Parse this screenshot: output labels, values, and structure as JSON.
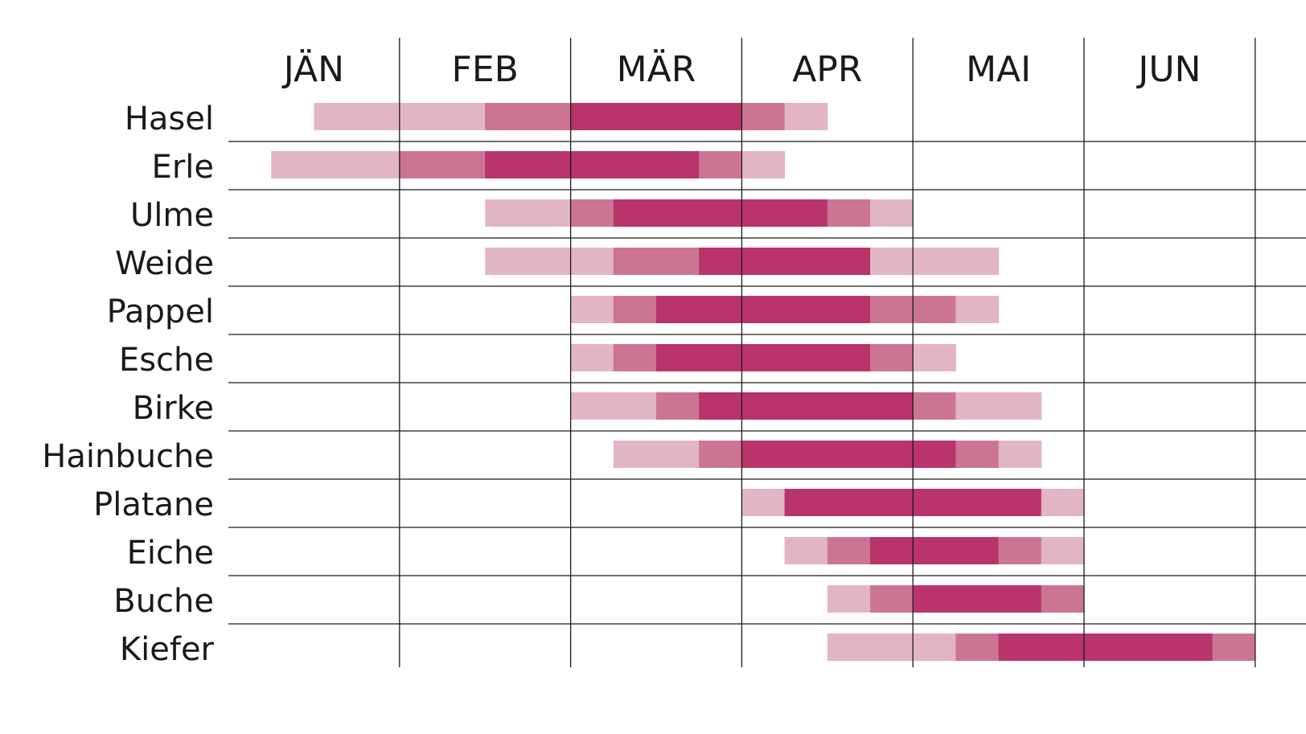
{
  "chart_data": {
    "type": "gantt",
    "months": [
      "JÄN",
      "FEB",
      "MÄR",
      "APR",
      "MAI",
      "JUN"
    ],
    "x_unit": "quarter-month",
    "colors": {
      "level1": "#e2b5c5",
      "level2": "#cc7593",
      "level3": "#b8346b"
    },
    "rows": [
      {
        "name": "Hasel",
        "segments": [
          {
            "start": 2,
            "end": 6,
            "level": 1
          },
          {
            "start": 6,
            "end": 8,
            "level": 2
          },
          {
            "start": 8,
            "end": 12,
            "level": 3
          },
          {
            "start": 12,
            "end": 13,
            "level": 2
          },
          {
            "start": 13,
            "end": 14,
            "level": 1
          }
        ]
      },
      {
        "name": "Erle",
        "segments": [
          {
            "start": 1,
            "end": 4,
            "level": 1
          },
          {
            "start": 4,
            "end": 6,
            "level": 2
          },
          {
            "start": 6,
            "end": 11,
            "level": 3
          },
          {
            "start": 11,
            "end": 12,
            "level": 2
          },
          {
            "start": 12,
            "end": 13,
            "level": 1
          }
        ]
      },
      {
        "name": "Ulme",
        "segments": [
          {
            "start": 6,
            "end": 8,
            "level": 1
          },
          {
            "start": 8,
            "end": 9,
            "level": 2
          },
          {
            "start": 9,
            "end": 14,
            "level": 3
          },
          {
            "start": 14,
            "end": 15,
            "level": 2
          },
          {
            "start": 15,
            "end": 16,
            "level": 1
          }
        ]
      },
      {
        "name": "Weide",
        "segments": [
          {
            "start": 6,
            "end": 9,
            "level": 1
          },
          {
            "start": 9,
            "end": 11,
            "level": 2
          },
          {
            "start": 11,
            "end": 15,
            "level": 3
          },
          {
            "start": 15,
            "end": 18,
            "level": 1
          }
        ]
      },
      {
        "name": "Pappel",
        "segments": [
          {
            "start": 8,
            "end": 9,
            "level": 1
          },
          {
            "start": 9,
            "end": 10,
            "level": 2
          },
          {
            "start": 10,
            "end": 15,
            "level": 3
          },
          {
            "start": 15,
            "end": 17,
            "level": 2
          },
          {
            "start": 17,
            "end": 18,
            "level": 1
          }
        ]
      },
      {
        "name": "Esche",
        "segments": [
          {
            "start": 8,
            "end": 9,
            "level": 1
          },
          {
            "start": 9,
            "end": 10,
            "level": 2
          },
          {
            "start": 10,
            "end": 15,
            "level": 3
          },
          {
            "start": 15,
            "end": 16,
            "level": 2
          },
          {
            "start": 16,
            "end": 17,
            "level": 1
          }
        ]
      },
      {
        "name": "Birke",
        "segments": [
          {
            "start": 8,
            "end": 10,
            "level": 1
          },
          {
            "start": 10,
            "end": 11,
            "level": 2
          },
          {
            "start": 11,
            "end": 16,
            "level": 3
          },
          {
            "start": 16,
            "end": 17,
            "level": 2
          },
          {
            "start": 17,
            "end": 19,
            "level": 1
          }
        ]
      },
      {
        "name": "Hainbuche",
        "segments": [
          {
            "start": 9,
            "end": 11,
            "level": 1
          },
          {
            "start": 11,
            "end": 12,
            "level": 2
          },
          {
            "start": 12,
            "end": 17,
            "level": 3
          },
          {
            "start": 17,
            "end": 18,
            "level": 2
          },
          {
            "start": 18,
            "end": 19,
            "level": 1
          }
        ]
      },
      {
        "name": "Platane",
        "segments": [
          {
            "start": 12,
            "end": 13,
            "level": 1
          },
          {
            "start": 13,
            "end": 19,
            "level": 3
          },
          {
            "start": 19,
            "end": 20,
            "level": 1
          }
        ]
      },
      {
        "name": "Eiche",
        "segments": [
          {
            "start": 13,
            "end": 14,
            "level": 1
          },
          {
            "start": 14,
            "end": 15,
            "level": 2
          },
          {
            "start": 15,
            "end": 18,
            "level": 3
          },
          {
            "start": 18,
            "end": 19,
            "level": 2
          },
          {
            "start": 19,
            "end": 20,
            "level": 1
          }
        ]
      },
      {
        "name": "Buche",
        "segments": [
          {
            "start": 14,
            "end": 15,
            "level": 1
          },
          {
            "start": 15,
            "end": 16,
            "level": 2
          },
          {
            "start": 16,
            "end": 19,
            "level": 3
          },
          {
            "start": 19,
            "end": 20,
            "level": 2
          }
        ]
      },
      {
        "name": "Kiefer",
        "segments": [
          {
            "start": 14,
            "end": 17,
            "level": 1
          },
          {
            "start": 17,
            "end": 18,
            "level": 2
          },
          {
            "start": 18,
            "end": 23,
            "level": 3
          },
          {
            "start": 23,
            "end": 24,
            "level": 2
          }
        ]
      }
    ]
  }
}
